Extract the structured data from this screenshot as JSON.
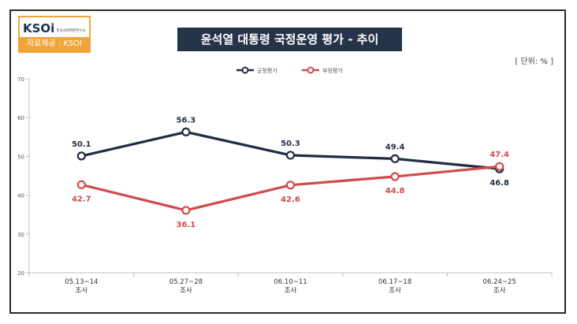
{
  "logo": {
    "mark": "KSOi",
    "subtitle": "한국사회여론연구소",
    "source": "자료제공 : KSOI"
  },
  "header": {
    "title": "윤석열 대통령 국정운영 평가 - 추이",
    "unit": "[ 단위: % ]"
  },
  "chart_data": {
    "type": "line",
    "title": "윤석열 대통령 국정운영 평가 - 추이",
    "categories": [
      "05.13~14",
      "05.27~28",
      "06.10~11",
      "06.17~18",
      "06.24~25"
    ],
    "category_sublabel": "조사",
    "series": [
      {
        "name": "긍정평가",
        "color": "#1f2d44",
        "values": [
          50.1,
          56.3,
          50.3,
          49.4,
          46.8
        ]
      },
      {
        "name": "부정평가",
        "color": "#d24a4a",
        "values": [
          42.7,
          36.1,
          42.6,
          44.8,
          47.4
        ]
      }
    ],
    "ylim": [
      20,
      70
    ],
    "yticks": [
      20,
      30,
      40,
      50,
      60,
      70
    ],
    "legend": "top-center",
    "unit": "%"
  }
}
